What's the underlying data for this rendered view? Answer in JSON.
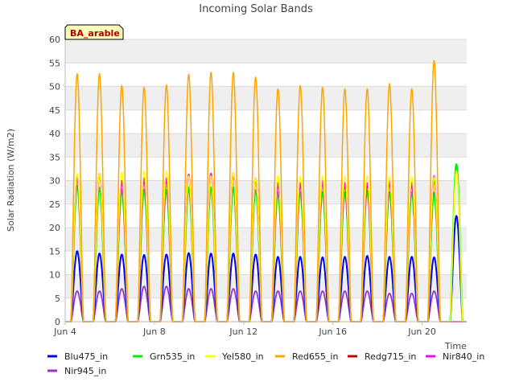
{
  "chart_data": {
    "type": "line",
    "title": "Incoming Solar Bands",
    "xlabel": "Time",
    "ylabel": "Solar Radiation (W/m2)",
    "site_label": "BA_arable",
    "ylim": [
      0,
      60
    ],
    "xlim": [
      "2024-06-04",
      "2024-06-22"
    ],
    "y_ticks": [
      0,
      5,
      10,
      15,
      20,
      25,
      30,
      35,
      40,
      45,
      50,
      55,
      60
    ],
    "x_ticks": [
      {
        "label": "Jun 4",
        "date": "06-04"
      },
      {
        "label": "Jun 8",
        "date": "06-08"
      },
      {
        "label": "Jun 12",
        "date": "06-12"
      },
      {
        "label": "Jun 16",
        "date": "06-16"
      },
      {
        "label": "Jun 20",
        "date": "06-20"
      }
    ],
    "grid": true,
    "legend_position": "bottom",
    "days": [
      "06-04",
      "06-05",
      "06-06",
      "06-07",
      "06-08",
      "06-09",
      "06-10",
      "06-11",
      "06-12",
      "06-13",
      "06-14",
      "06-15",
      "06-16",
      "06-17",
      "06-18",
      "06-19",
      "06-20",
      "06-21"
    ],
    "series": [
      {
        "name": "Blu475_in",
        "color": "#0000ff",
        "daily_peak": [
          15.0,
          14.5,
          14.3,
          14.2,
          14.3,
          14.6,
          14.5,
          14.5,
          14.3,
          13.8,
          13.8,
          13.7,
          13.8,
          14.0,
          13.8,
          13.8,
          13.7,
          22.5
        ]
      },
      {
        "name": "Grn535_in",
        "color": "#00ee00",
        "daily_peak": [
          29.0,
          28.5,
          28.0,
          28.0,
          28.0,
          28.5,
          28.5,
          28.5,
          28.0,
          27.5,
          27.5,
          27.5,
          27.5,
          27.8,
          27.5,
          27.5,
          27.5,
          33.5
        ]
      },
      {
        "name": "Yel580_in",
        "color": "#ffff00",
        "daily_peak": [
          31.5,
          31.5,
          31.8,
          32.0,
          32.0,
          31.0,
          31.0,
          31.5,
          30.5,
          31.0,
          31.0,
          31.0,
          31.0,
          31.0,
          30.8,
          30.8,
          30.8,
          32.0
        ]
      },
      {
        "name": "Red655_in",
        "color": "#ffa500",
        "daily_peak": [
          52.7,
          52.7,
          50.2,
          49.8,
          50.3,
          52.6,
          53.0,
          53.0,
          52.0,
          49.5,
          50.2,
          49.8,
          49.5,
          49.5,
          50.6,
          49.5,
          55.5,
          0
        ]
      },
      {
        "name": "Redg715_in",
        "color": "#cc0000",
        "daily_peak": [
          30.5,
          31.5,
          29.5,
          30.0,
          30.0,
          31.0,
          31.0,
          31.0,
          30.0,
          29.0,
          29.0,
          29.5,
          29.0,
          29.0,
          29.5,
          29.0,
          30.0,
          0
        ]
      },
      {
        "name": "Nir840_in",
        "color": "#ff00ff",
        "daily_peak": [
          31.0,
          31.5,
          30.0,
          30.5,
          30.5,
          31.3,
          31.5,
          31.5,
          30.5,
          29.5,
          29.5,
          30.0,
          29.5,
          29.5,
          30.0,
          29.5,
          31.0,
          0
        ]
      },
      {
        "name": "Nir945_in",
        "color": "#9933cc",
        "daily_peak": [
          6.5,
          6.5,
          7.0,
          7.5,
          7.5,
          7.0,
          7.0,
          7.0,
          6.5,
          6.5,
          6.5,
          6.5,
          6.5,
          6.5,
          6.0,
          6.0,
          6.5,
          0
        ]
      }
    ]
  }
}
